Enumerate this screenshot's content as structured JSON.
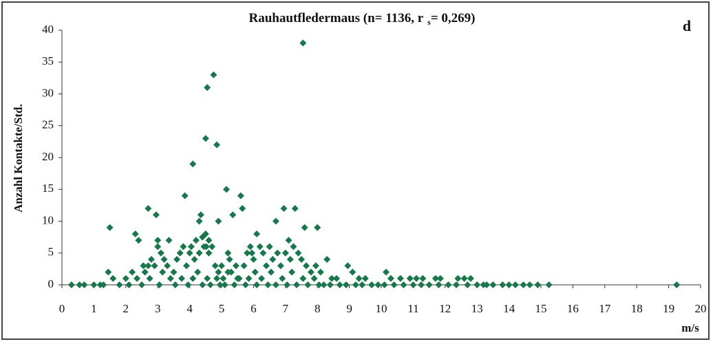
{
  "chart_data": {
    "type": "scatter",
    "title": [
      "Rauhautfledermaus (n= 1136, r",
      "s",
      "= 0,269)"
    ],
    "panel_label": "d",
    "ylabel": "Anzahl Kontakte/Std.",
    "xlabel": "m/s",
    "color": "#17784a",
    "xlim": [
      0,
      20
    ],
    "ylim": [
      0,
      40
    ],
    "xticks": [
      0,
      1,
      2,
      3,
      4,
      5,
      6,
      7,
      8,
      9,
      10,
      11,
      12,
      13,
      14,
      15,
      16,
      17,
      18,
      19,
      20
    ],
    "yticks": [
      0,
      5,
      10,
      15,
      20,
      25,
      30,
      35,
      40
    ],
    "x": [
      7.55,
      4.75,
      4.55,
      4.5,
      4.85,
      4.1,
      5.15,
      3.85,
      5.6,
      2.7,
      5.65,
      6.95,
      7.3,
      2.95,
      4.35,
      5.35,
      4.9,
      6.7,
      4.3,
      1.5,
      7.6,
      8.0,
      2.3,
      4.5,
      6.1,
      4.4,
      2.4,
      3.0,
      3.35,
      4.6,
      7.1,
      5.2,
      5.9,
      1.45,
      2.0,
      2.2,
      2.55,
      2.6,
      2.7,
      2.8,
      2.9,
      3.0,
      3.1,
      3.2,
      3.3,
      3.5,
      3.6,
      3.7,
      3.8,
      3.9,
      4.0,
      4.05,
      4.15,
      4.2,
      4.3,
      4.45,
      4.52,
      4.6,
      4.7,
      4.8,
      4.9,
      5.0,
      5.05,
      5.25,
      5.3,
      5.45,
      5.5,
      5.7,
      5.8,
      5.95,
      6.0,
      6.05,
      6.2,
      6.3,
      6.4,
      6.5,
      6.6,
      6.75,
      6.85,
      7.0,
      7.15,
      7.25,
      7.4,
      7.5,
      7.65,
      7.8,
      7.95,
      8.1,
      8.3,
      8.45,
      8.6,
      8.95,
      9.1,
      9.3,
      9.5,
      10.15,
      10.3,
      10.6,
      10.9,
      11.1,
      11.3,
      11.7,
      11.85,
      12.4,
      12.6,
      12.8,
      0.3,
      0.55,
      0.7,
      1.0,
      1.2,
      1.3,
      1.6,
      1.8,
      2.1,
      2.35,
      2.5,
      2.75,
      3.05,
      3.15,
      3.4,
      3.55,
      3.75,
      3.95,
      4.1,
      4.25,
      4.4,
      4.55,
      4.65,
      4.85,
      4.95,
      5.1,
      5.2,
      5.4,
      5.55,
      5.75,
      5.85,
      6.1,
      6.25,
      6.45,
      6.55,
      6.7,
      6.9,
      7.05,
      7.2,
      7.35,
      7.55,
      7.7,
      7.9,
      8.05,
      8.2,
      8.4,
      8.7,
      8.9,
      9.2,
      9.4,
      9.7,
      9.9,
      10.1,
      10.4,
      10.7,
      11.0,
      11.25,
      11.5,
      11.8,
      12.1,
      12.35,
      12.7,
      13.0,
      13.2,
      13.3,
      13.5,
      13.8,
      14.0,
      14.2,
      14.45,
      14.65,
      14.9,
      15.25,
      19.25
    ],
    "values": [
      38,
      33,
      31,
      23,
      22,
      19,
      15,
      14,
      14,
      12,
      12,
      12,
      12,
      11,
      11,
      11,
      10,
      10,
      10,
      9,
      9,
      9,
      8,
      8,
      8,
      7.5,
      7,
      7,
      7,
      7,
      7,
      5,
      6,
      2,
      1,
      2,
      3,
      2,
      3,
      4,
      3,
      6,
      5,
      4,
      3,
      2,
      4,
      5,
      6,
      3,
      5,
      6,
      4,
      7,
      5,
      6,
      6,
      5,
      6,
      3,
      2,
      3,
      1,
      4,
      2,
      3,
      1,
      3,
      5,
      5,
      4,
      2,
      6,
      5,
      3,
      6,
      4,
      5,
      3,
      5,
      4,
      6,
      5,
      4,
      3,
      2,
      3,
      2,
      4,
      1,
      1,
      3,
      2,
      1,
      1,
      2,
      1,
      1,
      1,
      1,
      1,
      1,
      1,
      1,
      1,
      1,
      0,
      0,
      0,
      0,
      0,
      0,
      1,
      0,
      0,
      1,
      0,
      1,
      0,
      2,
      1,
      0,
      1,
      0,
      1,
      2,
      0,
      1,
      0,
      1,
      0,
      0,
      2,
      0,
      1,
      0,
      1,
      0,
      1,
      0,
      2,
      0,
      1,
      0,
      2,
      0,
      1,
      0,
      1,
      0,
      0,
      0,
      0,
      0,
      0,
      0,
      0,
      0,
      0,
      0,
      0,
      0,
      0,
      0,
      0,
      0,
      0,
      0,
      0,
      0,
      0,
      0,
      0,
      0,
      0,
      0,
      0,
      0,
      0,
      0
    ]
  }
}
